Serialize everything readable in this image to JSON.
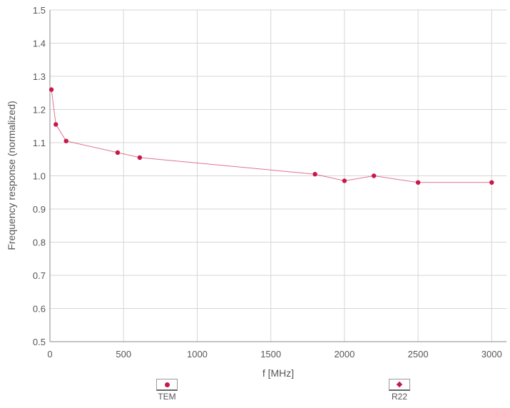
{
  "chart_data": {
    "type": "line",
    "title": "",
    "xlabel": "f [MHz]",
    "ylabel": "Frequency response (normalized)",
    "xlim": [
      0,
      3100
    ],
    "ylim": [
      0.5,
      1.5
    ],
    "grid": true,
    "x_ticks": [
      "0",
      "500",
      "1000",
      "1500",
      "2000",
      "2500",
      "3000"
    ],
    "y_ticks": [
      "0.5",
      "0.6",
      "0.7",
      "0.8",
      "0.9",
      "1.0",
      "1.1",
      "1.2",
      "1.3",
      "1.4",
      "1.5"
    ],
    "legend_position": "bottom",
    "series": [
      {
        "name": "TEM",
        "color": "#c8184a",
        "marker": "circle",
        "x": [
          10,
          40,
          110,
          460,
          610,
          1800,
          2000,
          2200,
          2500,
          3000
        ],
        "y": [
          1.26,
          1.155,
          1.105,
          1.07,
          1.055,
          1.005,
          0.985,
          1.0,
          0.98,
          0.98
        ]
      },
      {
        "name": "R22",
        "color": "#c8184a",
        "marker": "diamond",
        "x": [],
        "y": []
      }
    ]
  }
}
